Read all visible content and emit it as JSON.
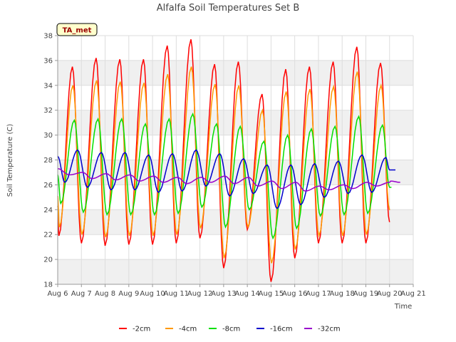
{
  "chart_data": {
    "type": "line",
    "title": "Alfalfa Soil Temperatures Set B",
    "xlabel": "Time",
    "ylabel": "Soil Temperature (C)",
    "badge": "TA_met",
    "ylim": [
      18,
      38
    ],
    "yticks": [
      18,
      20,
      22,
      24,
      26,
      28,
      30,
      32,
      34,
      36,
      38
    ],
    "xlim": [
      "Aug 6",
      "Aug 21"
    ],
    "xticks": [
      "Aug 6",
      "Aug 7",
      "Aug 8",
      "Aug 9",
      "Aug 10",
      "Aug 11",
      "Aug 12",
      "Aug 13",
      "Aug 14",
      "Aug 15",
      "Aug 16",
      "Aug 17",
      "Aug 18",
      "Aug 19",
      "Aug 20",
      "Aug 21"
    ],
    "grid": true,
    "legend_position": "bottom",
    "x": [
      "Aug 6",
      "Aug 7",
      "Aug 8",
      "Aug 9",
      "Aug 10",
      "Aug 11",
      "Aug 12",
      "Aug 13",
      "Aug 14",
      "Aug 15",
      "Aug 16",
      "Aug 17",
      "Aug 18",
      "Aug 19",
      "Aug 20"
    ],
    "series": [
      {
        "name": "-2cm",
        "color": "#ff0000",
        "daily_max": [
          35.5,
          36.2,
          36.1,
          36.1,
          37.2,
          37.7,
          35.7,
          35.9,
          33.3,
          35.3,
          35.5,
          35.9,
          37.1,
          35.8
        ],
        "daily_min": [
          21.9,
          21.3,
          21.1,
          21.2,
          21.2,
          21.3,
          21.7,
          19.3,
          22.4,
          18.2,
          20.1,
          21.3,
          21.3,
          21.3
        ],
        "start": 24.3,
        "end": 23.0
      },
      {
        "name": "-4cm",
        "color": "#ff9900",
        "daily_max": [
          34.0,
          34.4,
          34.3,
          34.2,
          34.9,
          35.5,
          34.1,
          34.0,
          32.0,
          33.5,
          33.7,
          33.9,
          35.1,
          34.0
        ],
        "daily_min": [
          22.6,
          22.0,
          21.8,
          21.9,
          21.9,
          22.0,
          22.5,
          20.1,
          22.6,
          19.7,
          20.8,
          21.9,
          21.9,
          22.0
        ],
        "start": 25.1,
        "end": 24.0
      },
      {
        "name": "-8cm",
        "color": "#00e000",
        "daily_max": [
          31.2,
          31.3,
          31.3,
          30.9,
          31.3,
          31.7,
          30.9,
          30.7,
          29.5,
          30.0,
          30.5,
          30.7,
          31.5,
          30.8
        ],
        "daily_min": [
          24.5,
          23.8,
          23.6,
          23.6,
          23.6,
          23.7,
          24.2,
          22.6,
          24.0,
          21.7,
          22.5,
          23.5,
          23.6,
          23.7
        ],
        "start": 26.8,
        "end": 25.8
      },
      {
        "name": "-16cm",
        "color": "#0000cc",
        "daily_max": [
          28.8,
          28.6,
          28.6,
          28.4,
          28.5,
          28.8,
          28.5,
          28.1,
          27.6,
          27.6,
          27.7,
          27.9,
          28.4,
          28.2
        ],
        "daily_min": [
          26.2,
          25.8,
          25.6,
          25.6,
          25.4,
          25.5,
          25.9,
          25.1,
          25.3,
          24.1,
          24.4,
          25.0,
          25.3,
          25.4
        ],
        "start": 28.3,
        "end": 27.2
      },
      {
        "name": "-32cm",
        "color": "#9900cc",
        "daily_max": [
          27.0,
          26.9,
          26.8,
          26.7,
          26.6,
          26.6,
          26.7,
          26.6,
          26.3,
          26.2,
          25.9,
          26.0,
          26.2,
          26.3
        ],
        "daily_min": [
          26.8,
          26.5,
          26.4,
          26.3,
          26.2,
          26.1,
          26.2,
          26.1,
          25.9,
          25.7,
          25.5,
          25.6,
          25.7,
          25.9
        ],
        "start": 27.3,
        "end": 26.2
      }
    ]
  }
}
